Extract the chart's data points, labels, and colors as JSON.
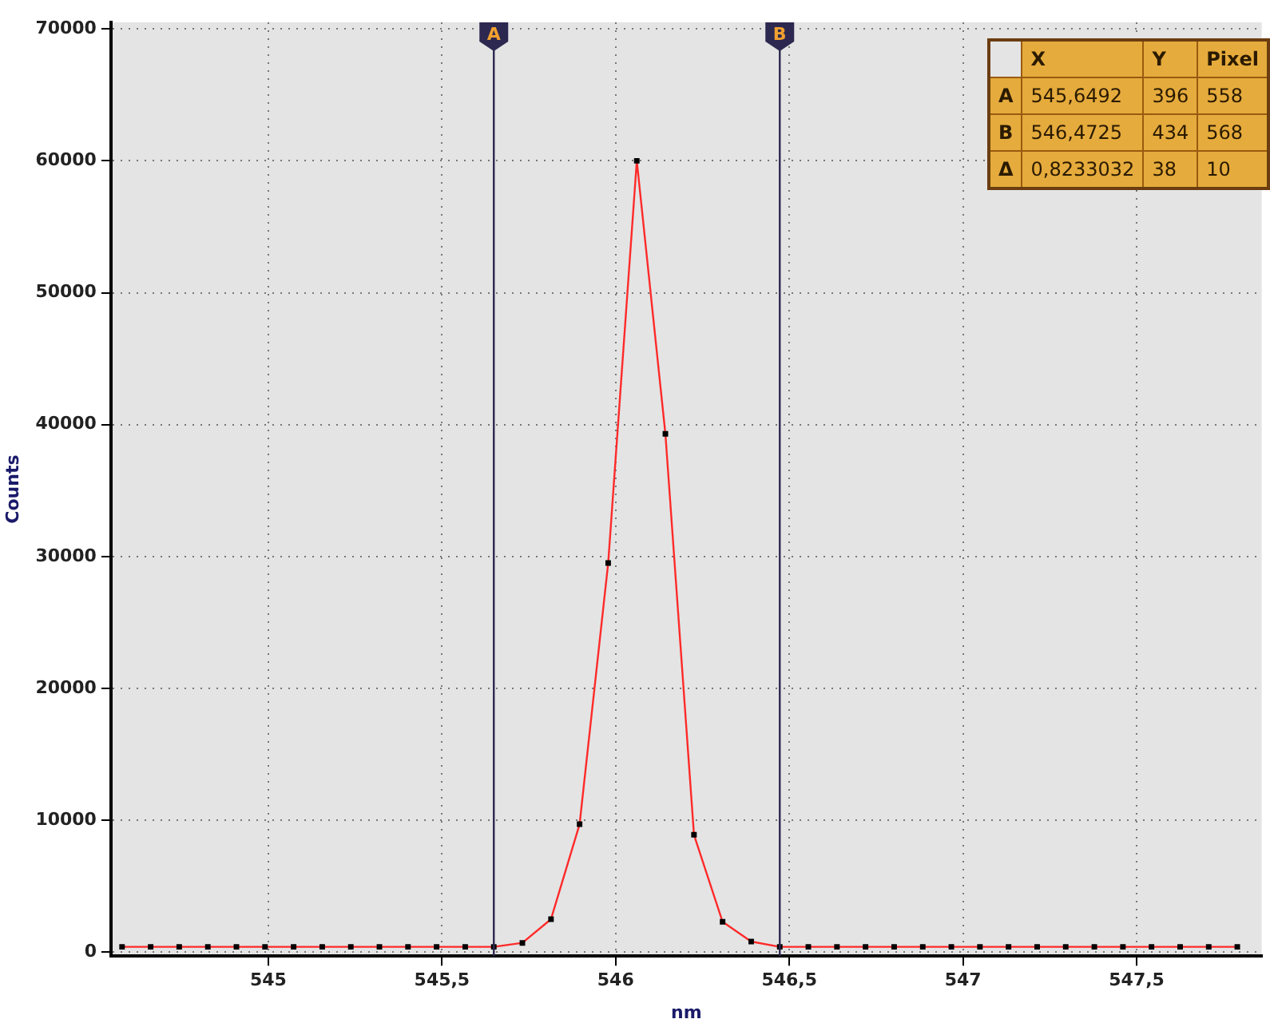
{
  "chart_data": {
    "type": "line",
    "xlabel": "nm",
    "ylabel": "Counts",
    "x": [
      544.5789,
      544.6612,
      544.7435,
      544.8259,
      544.9082,
      544.9905,
      545.0729,
      545.1552,
      545.2375,
      545.3199,
      545.4022,
      545.4845,
      545.5669,
      545.6492,
      545.7315,
      545.8139,
      545.8962,
      545.9785,
      546.0609,
      546.1432,
      546.2255,
      546.3079,
      546.3902,
      546.4725,
      546.5548,
      546.6372,
      546.7195,
      546.8018,
      546.8842,
      546.9665,
      547.0488,
      547.1312,
      547.2135,
      547.2958,
      547.3782,
      547.4605,
      547.5428,
      547.6252,
      547.7075,
      547.7898
    ],
    "series": [
      {
        "color": "#ff2a2a",
        "values": [
          400,
          400,
          400,
          400,
          400,
          400,
          400,
          400,
          400,
          400,
          400,
          400,
          400,
          400,
          700,
          2500,
          9700,
          29500,
          60000,
          39300,
          8900,
          2300,
          800,
          400,
          400,
          400,
          400,
          400,
          400,
          400,
          400,
          400,
          400,
          400,
          400,
          400,
          400,
          400,
          400,
          400
        ]
      }
    ],
    "xlim": [
      544.547,
      547.86
    ],
    "xticks": [
      545,
      {
        "value": 545.5,
        "label": "545,5"
      },
      546,
      {
        "value": 546.5,
        "label": "546,5"
      },
      547,
      {
        "value": 547.5,
        "label": "547,5"
      }
    ],
    "ylim": [
      -300,
      70500
    ],
    "yticks": [
      0,
      10000,
      20000,
      30000,
      40000,
      50000,
      60000,
      70000
    ],
    "grid": true,
    "marker": "square",
    "line_style": "solid",
    "legend": false,
    "ref_lines": [
      {
        "axis": "x",
        "value": 545.6492,
        "label": "A",
        "color": "#2c2850"
      },
      {
        "axis": "x",
        "value": 546.4725,
        "label": "B",
        "color": "#2c2850"
      }
    ],
    "annotations": [
      "X",
      "Y",
      "Pixel",
      "A",
      "545,6492",
      "396",
      "558",
      "B",
      "546,4725",
      "434",
      "568",
      "Δ",
      "0,8233032",
      "38",
      "10"
    ]
  }
}
